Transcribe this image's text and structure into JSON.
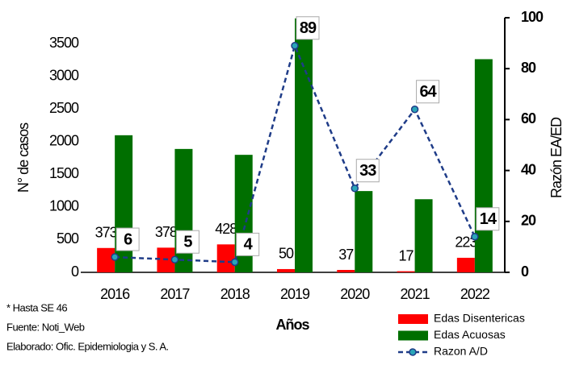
{
  "chart_data": {
    "type": "bar",
    "x_label": "Años",
    "y_label": "N° de casos",
    "y2_label": "Razón EA/ED",
    "categories": [
      "2016",
      "2017",
      "2018",
      "2019",
      "2020",
      "2021",
      "2022"
    ],
    "series": [
      {
        "name": "Edas Disentericas",
        "color": "#ff0000",
        "values": [
          373,
          378,
          428,
          50,
          37,
          17,
          223
        ]
      },
      {
        "name": "Edas Acuosas",
        "color": "#006f00",
        "values": [
          2100,
          1890,
          1800,
          3890,
          1245,
          1120,
          3265
        ]
      },
      {
        "name": "Razon A/D",
        "color": "#1f3c88",
        "type": "line",
        "axis": "y2",
        "values": [
          6,
          5,
          4,
          89,
          33,
          64,
          14
        ]
      }
    ],
    "ylim": [
      0,
      3900
    ],
    "yticks": [
      0,
      500,
      1000,
      1500,
      2000,
      2500,
      3000,
      3500
    ],
    "y2lim": [
      0,
      100
    ],
    "y2ticks": [
      0,
      20,
      40,
      60,
      80,
      100
    ],
    "notes": [
      "* Hasta SE 46",
      "Fuente: Noti_Web",
      "Elaborado: Ofic. Epidemiologia y S. A."
    ]
  }
}
